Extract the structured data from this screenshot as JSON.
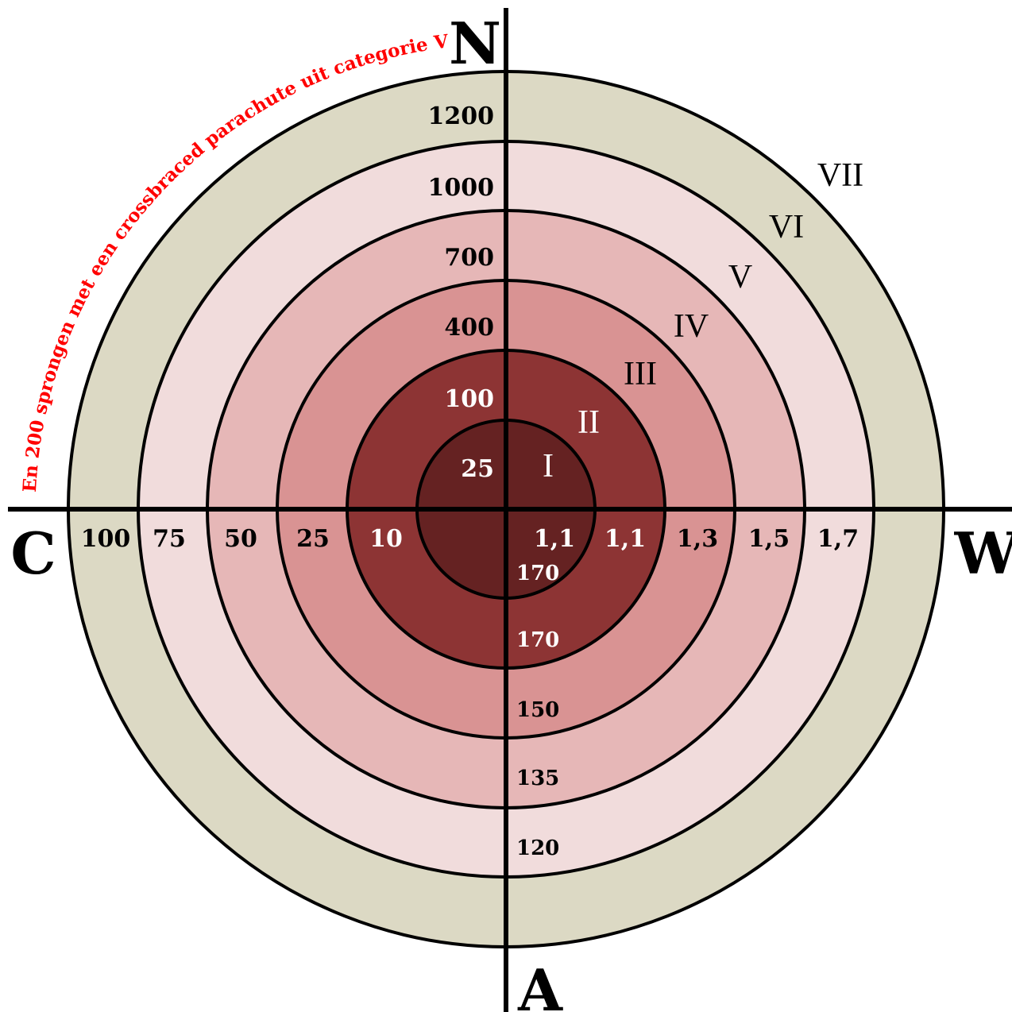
{
  "compass": {
    "north": "N",
    "east": "W",
    "south": "A",
    "west": "C"
  },
  "arc_caption": "En 200 sprongen met een crossbraced parachute uit categorie VI",
  "rings": [
    {
      "numeral": "I",
      "fill": "#652222",
      "north": "25",
      "west": "",
      "east": "1,1",
      "south": "170"
    },
    {
      "numeral": "II",
      "fill": "#8d3434",
      "north": "100",
      "west": "10",
      "east": "1,1",
      "south": "170"
    },
    {
      "numeral": "III",
      "fill": "#d99393",
      "north": "400",
      "west": "25",
      "east": "1,3",
      "south": "150"
    },
    {
      "numeral": "IV",
      "fill": "#e6b7b7",
      "north": "700",
      "west": "50",
      "east": "1,5",
      "south": "135"
    },
    {
      "numeral": "V",
      "fill": "#f1dcdc",
      "north": "1000",
      "west": "75",
      "east": "1,7",
      "south": "120"
    },
    {
      "numeral": "VI",
      "fill": "#dcd9c4",
      "north": "1200",
      "west": "100",
      "east": "",
      "south": ""
    },
    {
      "numeral": "VII",
      "fill": "",
      "north": "",
      "west": "",
      "east": "",
      "south": ""
    }
  ],
  "colors": {
    "caption": "#ff0000",
    "line": "#000000",
    "light_text": "#ffffff",
    "dark_text": "#000000"
  }
}
